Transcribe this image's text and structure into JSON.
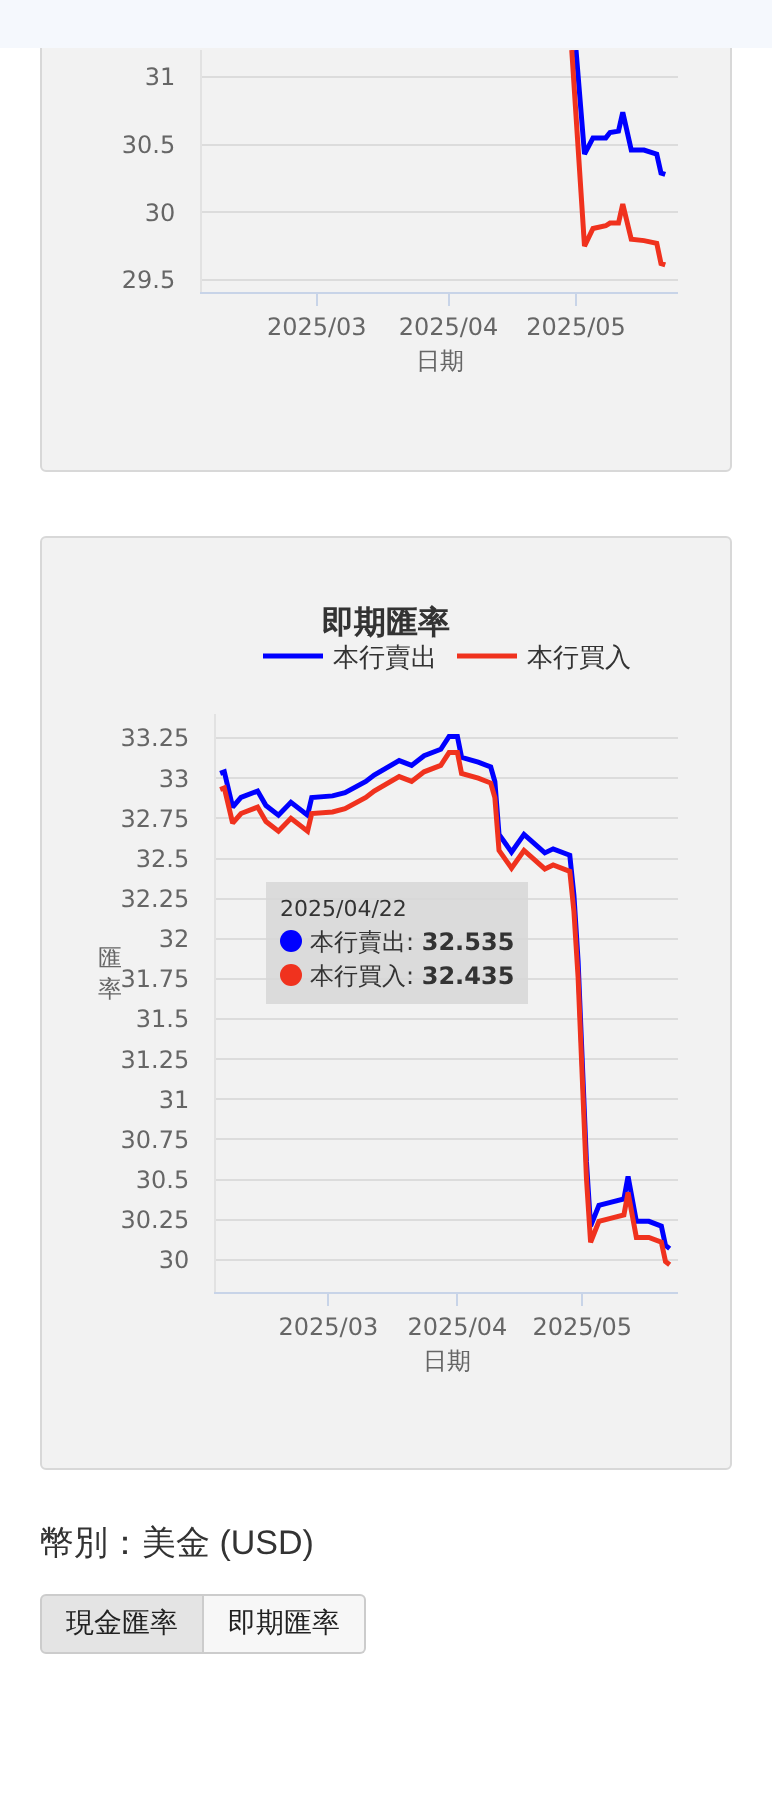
{
  "chart_data": [
    {
      "type": "line",
      "xlabel": "日期",
      "xlim": [
        "2025-02-02",
        "2025-05-25"
      ],
      "ylim": [
        29.41,
        31.2
      ],
      "yticks": [
        29.5,
        30,
        30.5,
        31
      ],
      "xticks": [
        {
          "value": "2025-03-01",
          "label": "2025/03"
        },
        {
          "value": "2025-04-01",
          "label": "2025/04"
        },
        {
          "value": "2025-05-01",
          "label": "2025/05"
        }
      ],
      "grid": "y",
      "legend": false,
      "series": [
        {
          "color": "#0000ff",
          "x": [
            "2025-05-01",
            "2025-05-03",
            "2025-05-05",
            "2025-05-08",
            "2025-05-09",
            "2025-05-11",
            "2025-05-12",
            "2025-05-14",
            "2025-05-17",
            "2025-05-20",
            "2025-05-21",
            "2025-05-22"
          ],
          "values": [
            31.2,
            30.43,
            30.55,
            30.55,
            30.59,
            30.6,
            30.74,
            30.46,
            30.46,
            30.43,
            30.29,
            30.28
          ]
        },
        {
          "color": "#f0321e",
          "x": [
            "2025-04-30",
            "2025-05-03",
            "2025-05-05",
            "2025-05-08",
            "2025-05-09",
            "2025-05-11",
            "2025-05-12",
            "2025-05-14",
            "2025-05-17",
            "2025-05-20",
            "2025-05-21",
            "2025-05-22"
          ],
          "values": [
            31.2,
            29.75,
            29.88,
            29.9,
            29.92,
            29.92,
            30.06,
            29.8,
            29.79,
            29.77,
            29.62,
            29.61
          ]
        }
      ]
    },
    {
      "type": "line",
      "title": "即期匯率",
      "xlabel": "日期",
      "ylabel": "匯率",
      "xlim": [
        "2025-02-02",
        "2025-05-24"
      ],
      "ylim": [
        29.8,
        33.4
      ],
      "yticks": [
        30,
        30.25,
        30.5,
        30.75,
        31,
        31.25,
        31.5,
        31.75,
        32,
        32.25,
        32.5,
        32.75,
        33,
        33.25
      ],
      "xticks": [
        {
          "value": "2025-03-01",
          "label": "2025/03"
        },
        {
          "value": "2025-04-01",
          "label": "2025/04"
        },
        {
          "value": "2025-05-01",
          "label": "2025/05"
        }
      ],
      "grid": "y",
      "legend": "top",
      "x": [
        "2025-02-03",
        "2025-02-04",
        "2025-02-06",
        "2025-02-08",
        "2025-02-12",
        "2025-02-14",
        "2025-02-17",
        "2025-02-20",
        "2025-02-24",
        "2025-02-25",
        "2025-03-02",
        "2025-03-05",
        "2025-03-10",
        "2025-03-12",
        "2025-03-18",
        "2025-03-21",
        "2025-03-24",
        "2025-03-28",
        "2025-03-30",
        "2025-04-01",
        "2025-04-02",
        "2025-04-06",
        "2025-04-09",
        "2025-04-10",
        "2025-04-11",
        "2025-04-14",
        "2025-04-17",
        "2025-04-22",
        "2025-04-24",
        "2025-04-28",
        "2025-04-29",
        "2025-04-30",
        "2025-05-02",
        "2025-05-03",
        "2025-05-05",
        "2025-05-08",
        "2025-05-11",
        "2025-05-12",
        "2025-05-14",
        "2025-05-17",
        "2025-05-20",
        "2025-05-21",
        "2025-05-22"
      ],
      "series": [
        {
          "name": "本行賣出",
          "color": "#0000ff",
          "values": [
            33.03,
            33.04,
            32.82,
            32.88,
            32.92,
            32.83,
            32.77,
            32.85,
            32.77,
            32.88,
            32.89,
            32.91,
            32.98,
            33.02,
            33.11,
            33.08,
            33.14,
            33.18,
            33.26,
            33.26,
            33.13,
            33.1,
            33.07,
            32.98,
            32.65,
            32.54,
            32.65,
            32.535,
            32.56,
            32.52,
            32.27,
            31.86,
            30.61,
            30.21,
            30.34,
            30.36,
            30.38,
            30.52,
            30.24,
            30.24,
            30.21,
            30.09,
            30.07
          ]
        },
        {
          "name": "本行買入",
          "color": "#f0321e",
          "values": [
            32.93,
            32.94,
            32.72,
            32.78,
            32.82,
            32.73,
            32.67,
            32.75,
            32.67,
            32.78,
            32.79,
            32.81,
            32.88,
            32.92,
            33.01,
            32.98,
            33.04,
            33.08,
            33.16,
            33.16,
            33.03,
            33,
            32.97,
            32.88,
            32.55,
            32.44,
            32.55,
            32.435,
            32.46,
            32.42,
            32.17,
            31.76,
            30.51,
            30.11,
            30.24,
            30.26,
            30.28,
            30.42,
            30.14,
            30.14,
            30.11,
            29.99,
            29.97
          ]
        }
      ],
      "annotations": [
        "2025/04/22",
        "本行賣出: 32.535",
        "本行買入: 32.435"
      ]
    },
    {
      "type": "other",
      "title": "幣別：美金 (USD)",
      "annotations": [
        "現金匯率",
        "即期匯率"
      ]
    }
  ]
}
